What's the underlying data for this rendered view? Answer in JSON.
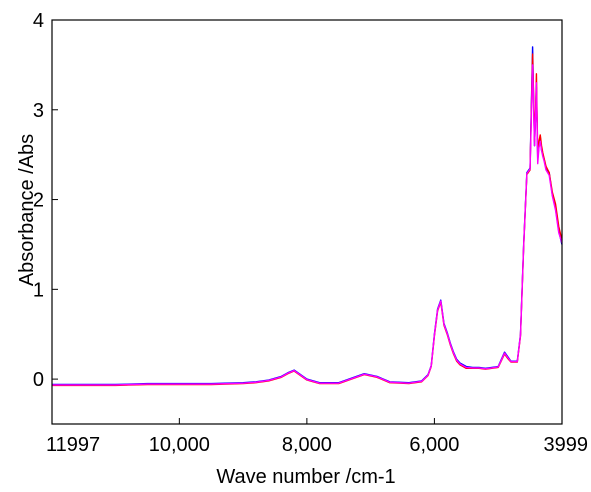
{
  "chart_data": {
    "type": "line",
    "title": "",
    "xlabel": "Wave number /cm-1",
    "ylabel": "Absorbance /Abs",
    "x_reversed": true,
    "xlim": [
      11997,
      3999
    ],
    "ylim": [
      -0.5,
      4
    ],
    "x_ticks": [
      11997,
      10000,
      8000,
      6000,
      3999
    ],
    "x_tick_labels": [
      "11997",
      "10,000",
      "8,000",
      "6,000",
      "3999"
    ],
    "y_ticks": [
      0,
      1,
      2,
      3,
      4
    ],
    "y_tick_labels": [
      "0",
      "1",
      "2",
      "3",
      "4"
    ],
    "grid": false,
    "legend": "none",
    "series": [
      {
        "color": "#0000ff",
        "x": [
          11997,
          11000,
          10500,
          10000,
          9500,
          9000,
          8800,
          8600,
          8400,
          8300,
          8200,
          8000,
          7800,
          7500,
          7300,
          7100,
          6900,
          6700,
          6400,
          6200,
          6100,
          6050,
          6000,
          5950,
          5900,
          5850,
          5800,
          5750,
          5700,
          5650,
          5600,
          5500,
          5400,
          5300,
          5200,
          5100,
          5000,
          4900,
          4850,
          4800,
          4750,
          4700,
          4650,
          4600,
          4550,
          4500,
          4460,
          4430,
          4410,
          4400,
          4380,
          4360,
          4340,
          4320,
          4300,
          4280,
          4250,
          4200,
          4150,
          4100,
          4050,
          4000
        ],
        "values": [
          -0.06,
          -0.06,
          -0.05,
          -0.05,
          -0.05,
          -0.04,
          -0.03,
          -0.01,
          0.03,
          0.07,
          0.1,
          0.0,
          -0.04,
          -0.04,
          0.01,
          0.06,
          0.03,
          -0.03,
          -0.04,
          -0.02,
          0.05,
          0.15,
          0.5,
          0.78,
          0.88,
          0.62,
          0.52,
          0.4,
          0.3,
          0.22,
          0.18,
          0.14,
          0.13,
          0.13,
          0.12,
          0.13,
          0.14,
          0.3,
          0.25,
          0.2,
          0.2,
          0.2,
          0.5,
          1.5,
          2.3,
          2.35,
          3.7,
          2.6,
          3.0,
          3.25,
          2.45,
          2.6,
          2.7,
          2.55,
          2.5,
          2.45,
          2.35,
          2.3,
          2.05,
          1.9,
          1.65,
          1.5
        ]
      },
      {
        "color": "#ff0000",
        "x": [
          11997,
          11000,
          10500,
          10000,
          9500,
          9000,
          8800,
          8600,
          8400,
          8300,
          8200,
          8000,
          7800,
          7500,
          7300,
          7100,
          6900,
          6700,
          6400,
          6200,
          6100,
          6050,
          6000,
          5950,
          5900,
          5850,
          5800,
          5750,
          5700,
          5650,
          5600,
          5500,
          5400,
          5300,
          5200,
          5100,
          5000,
          4900,
          4850,
          4800,
          4750,
          4700,
          4650,
          4600,
          4550,
          4500,
          4460,
          4430,
          4410,
          4400,
          4380,
          4360,
          4340,
          4320,
          4300,
          4280,
          4250,
          4200,
          4150,
          4100,
          4050,
          4000
        ],
        "values": [
          -0.07,
          -0.07,
          -0.06,
          -0.06,
          -0.06,
          -0.05,
          -0.04,
          -0.02,
          0.02,
          0.06,
          0.09,
          -0.01,
          -0.05,
          -0.05,
          0.0,
          0.05,
          0.02,
          -0.04,
          -0.05,
          -0.03,
          0.04,
          0.14,
          0.48,
          0.76,
          0.86,
          0.6,
          0.5,
          0.38,
          0.28,
          0.2,
          0.16,
          0.12,
          0.12,
          0.12,
          0.11,
          0.12,
          0.13,
          0.28,
          0.23,
          0.19,
          0.19,
          0.19,
          0.48,
          1.48,
          2.28,
          2.33,
          3.62,
          2.65,
          3.1,
          3.4,
          2.5,
          2.65,
          2.72,
          2.6,
          2.52,
          2.46,
          2.37,
          2.3,
          2.08,
          1.95,
          1.7,
          1.55
        ]
      },
      {
        "color": "#ff00ff",
        "x": [
          11997,
          11000,
          10500,
          10000,
          9500,
          9000,
          8800,
          8600,
          8400,
          8300,
          8200,
          8000,
          7800,
          7500,
          7300,
          7100,
          6900,
          6700,
          6400,
          6200,
          6100,
          6050,
          6000,
          5950,
          5900,
          5850,
          5800,
          5750,
          5700,
          5650,
          5600,
          5500,
          5400,
          5300,
          5200,
          5100,
          5000,
          4900,
          4850,
          4800,
          4750,
          4700,
          4650,
          4600,
          4550,
          4500,
          4460,
          4430,
          4410,
          4400,
          4380,
          4360,
          4340,
          4320,
          4300,
          4280,
          4250,
          4200,
          4150,
          4100,
          4050,
          4000
        ],
        "values": [
          -0.065,
          -0.065,
          -0.055,
          -0.055,
          -0.055,
          -0.045,
          -0.035,
          -0.015,
          0.025,
          0.065,
          0.095,
          -0.005,
          -0.045,
          -0.045,
          0.005,
          0.055,
          0.025,
          -0.035,
          -0.045,
          -0.025,
          0.045,
          0.145,
          0.49,
          0.77,
          0.87,
          0.61,
          0.51,
          0.39,
          0.29,
          0.21,
          0.17,
          0.13,
          0.125,
          0.125,
          0.115,
          0.125,
          0.135,
          0.29,
          0.24,
          0.195,
          0.195,
          0.195,
          0.49,
          1.49,
          2.29,
          2.34,
          3.5,
          2.6,
          3.0,
          3.3,
          2.4,
          2.58,
          2.65,
          2.55,
          2.48,
          2.43,
          2.33,
          2.27,
          2.04,
          1.88,
          1.63,
          1.52
        ]
      }
    ]
  }
}
